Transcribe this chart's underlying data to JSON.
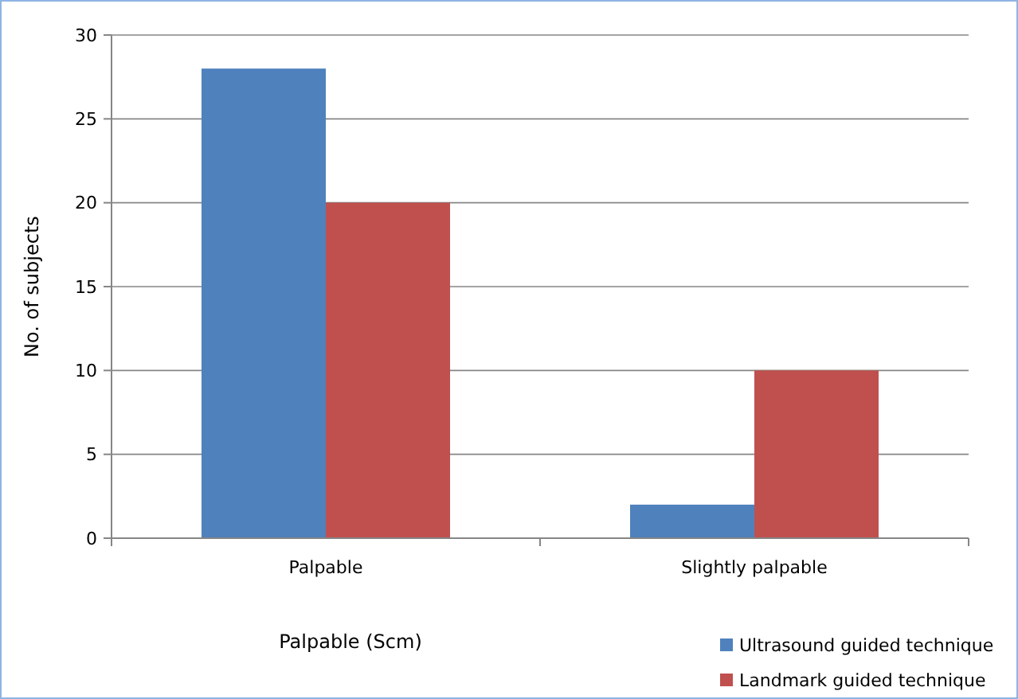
{
  "chart_data": {
    "type": "bar",
    "ylabel": "No. of subjects",
    "xlabel": "Palpable (Scm)",
    "categories": [
      "Palpable",
      "Slightly palpable"
    ],
    "series": [
      {
        "name": "Ultrasound guided technique",
        "color": "#4f81bd",
        "values": [
          28,
          2
        ]
      },
      {
        "name": "Landmark guided technique",
        "color": "#c0504d",
        "values": [
          20,
          10
        ]
      }
    ],
    "ylim": [
      0,
      30
    ],
    "yticks": [
      0,
      5,
      10,
      15,
      20,
      25,
      30
    ],
    "grid": "y",
    "legend": "bottom right"
  }
}
